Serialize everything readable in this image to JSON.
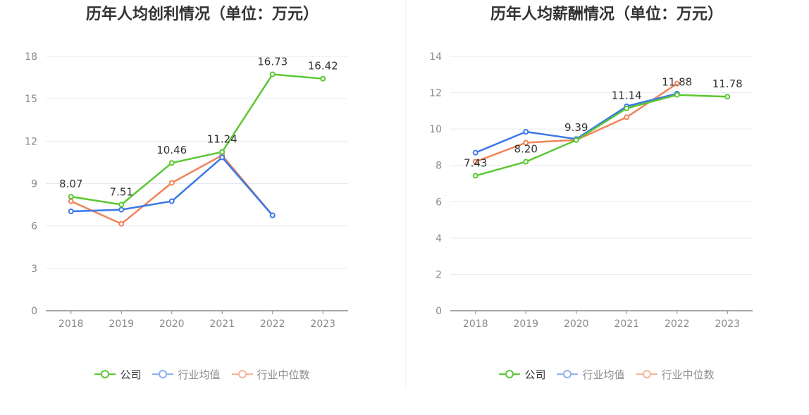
{
  "chart_data": [
    {
      "type": "line",
      "title": "历年人均创利情况（单位：万元）",
      "categories": [
        "2018",
        "2019",
        "2020",
        "2021",
        "2022",
        "2023"
      ],
      "ylim": [
        0,
        18
      ],
      "yticks": [
        0,
        3,
        6,
        9,
        12,
        15,
        18
      ],
      "grid": true,
      "legend_position": "bottom",
      "series": [
        {
          "name": "公司",
          "color": "#5ac832",
          "values": [
            8.07,
            7.51,
            10.46,
            11.24,
            16.73,
            16.42
          ],
          "labels": [
            "8.07",
            "7.51",
            "10.46",
            "11.24",
            "16.73",
            "16.42"
          ]
        },
        {
          "name": "行业均值",
          "color": "#3b78e7",
          "values": [
            7.03,
            7.15,
            7.75,
            10.85,
            6.75,
            null
          ]
        },
        {
          "name": "行业中位数",
          "color": "#f0845a",
          "values": [
            7.75,
            6.15,
            9.05,
            11.0,
            6.75,
            null
          ]
        }
      ]
    },
    {
      "type": "line",
      "title": "历年人均薪酬情况（单位：万元）",
      "categories": [
        "2018",
        "2019",
        "2020",
        "2021",
        "2022",
        "2023"
      ],
      "ylim": [
        0,
        14
      ],
      "yticks": [
        0,
        2,
        4,
        6,
        8,
        10,
        12,
        14
      ],
      "grid": true,
      "legend_position": "bottom",
      "series": [
        {
          "name": "公司",
          "color": "#5ac832",
          "values": [
            7.43,
            8.2,
            9.39,
            11.14,
            11.88,
            11.78
          ],
          "labels": [
            "7.43",
            "8.20",
            "9.39",
            "11.14",
            "11.88",
            "11.78"
          ]
        },
        {
          "name": "行业均值",
          "color": "#3b78e7",
          "values": [
            8.7,
            9.85,
            9.45,
            11.25,
            11.95,
            null
          ]
        },
        {
          "name": "行业中位数",
          "color": "#f0845a",
          "values": [
            8.2,
            9.25,
            9.4,
            10.65,
            12.5,
            null
          ]
        }
      ]
    }
  ],
  "legend": {
    "company": "公司",
    "industry_mean": "行业均值",
    "industry_median": "行业中位数"
  }
}
